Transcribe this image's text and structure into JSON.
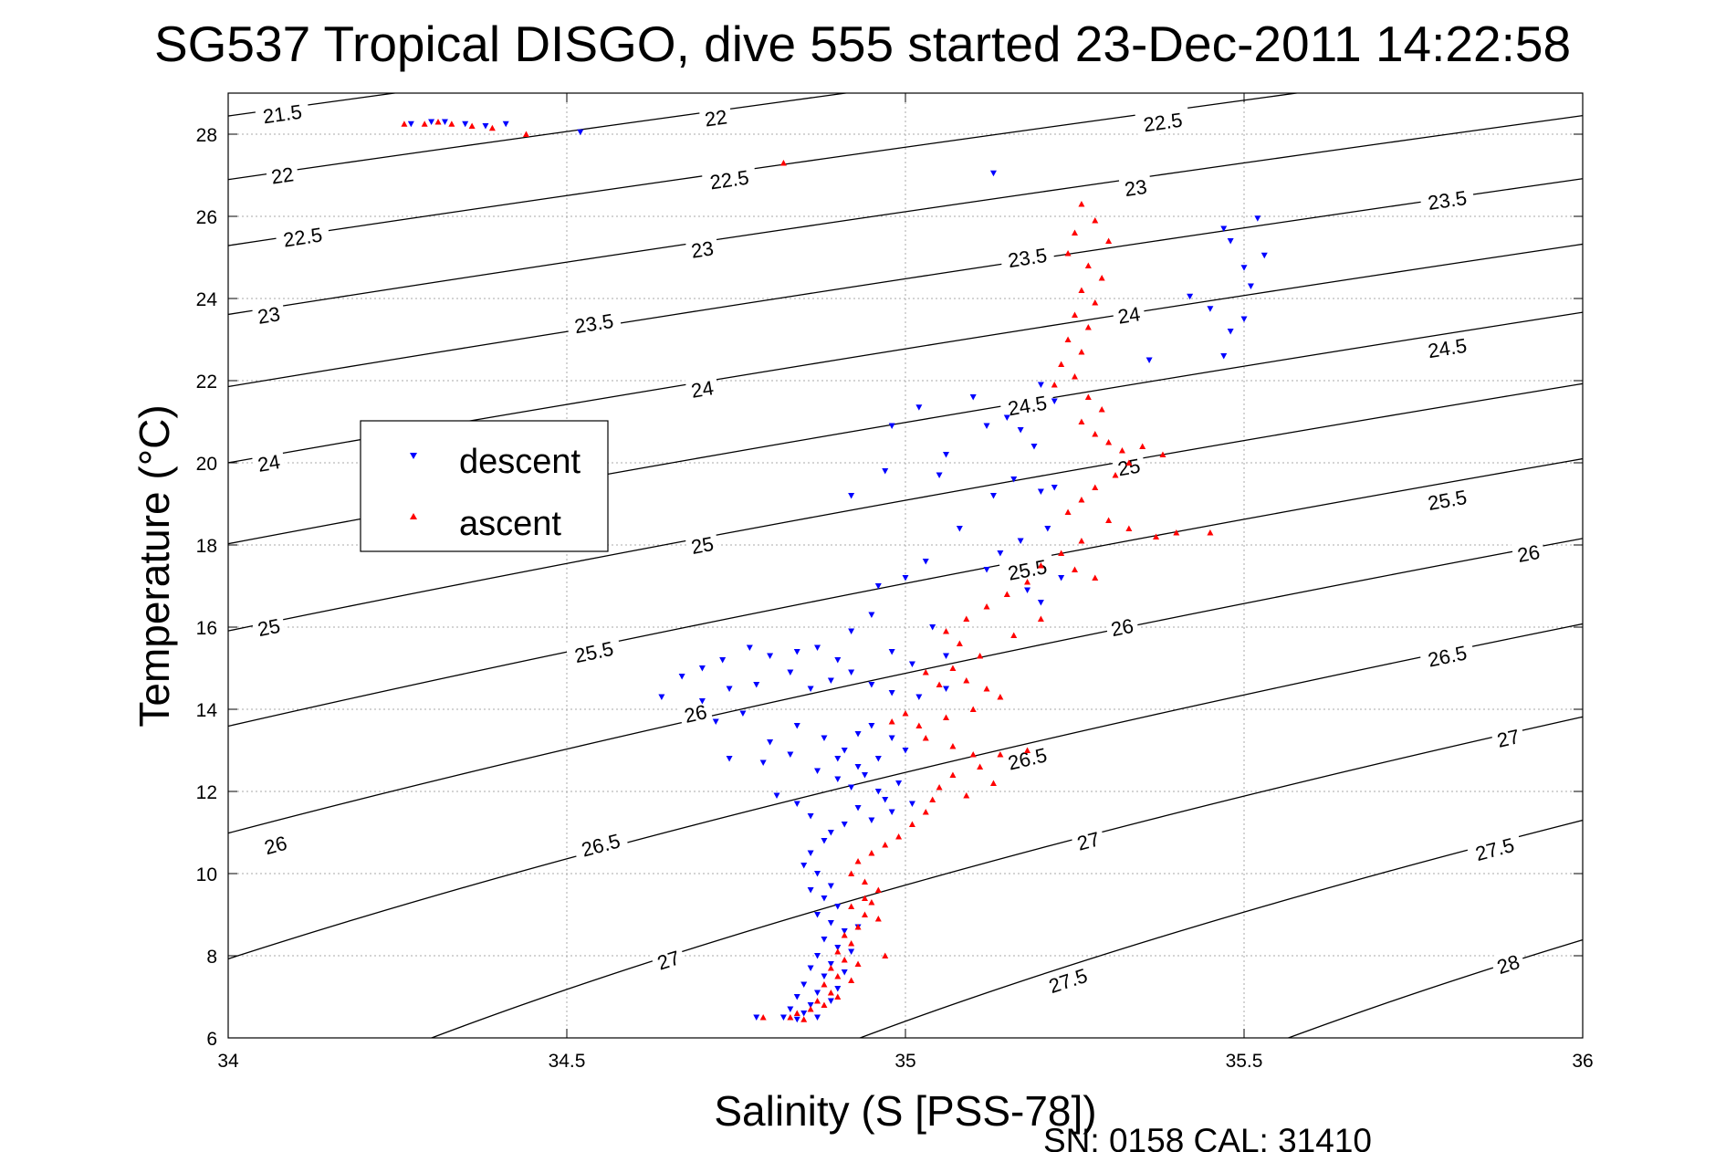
{
  "chart_data": {
    "type": "scatter",
    "title": "SG537 Tropical DISGO, dive 555 started 23-Dec-2011 14:22:58",
    "xlabel": "Salinity (S [PSS-78])",
    "ylabel": "Temperature (°C)",
    "xlim": [
      34,
      36
    ],
    "ylim": [
      6,
      29
    ],
    "x_ticks": [
      "34",
      "34.5",
      "35",
      "35.5",
      "36"
    ],
    "y_ticks": [
      "6",
      "8",
      "10",
      "12",
      "14",
      "16",
      "18",
      "20",
      "22",
      "24",
      "26",
      "28"
    ],
    "x_tick_values": [
      34,
      34.5,
      35,
      35.5,
      36
    ],
    "y_tick_values": [
      6,
      8,
      10,
      12,
      14,
      16,
      18,
      20,
      22,
      24,
      26,
      28
    ],
    "grid": true,
    "legend_position": "upper-left",
    "footer": "SN: 0158  CAL: 31410",
    "colors": {
      "descent": "#0000ff",
      "ascent": "#ff0000",
      "contour": "#000000",
      "grid": "#a8a8a8"
    },
    "isopycnals": [
      {
        "label": "21.5",
        "sigma": 21.5,
        "label_at": [
          [
            34.08,
            28.5
          ]
        ]
      },
      {
        "label": "22",
        "sigma": 22,
        "label_at": [
          [
            34.08,
            27.0
          ],
          [
            34.72,
            28.4
          ]
        ]
      },
      {
        "label": "22.5",
        "sigma": 22.5,
        "label_at": [
          [
            34.11,
            25.5
          ],
          [
            34.74,
            26.9
          ],
          [
            35.38,
            28.3
          ]
        ]
      },
      {
        "label": "23",
        "sigma": 23,
        "label_at": [
          [
            34.06,
            23.6
          ],
          [
            34.7,
            25.2
          ],
          [
            35.34,
            26.7
          ]
        ]
      },
      {
        "label": "23.5",
        "sigma": 23.5,
        "label_at": [
          [
            34.54,
            23.4
          ],
          [
            35.18,
            25.0
          ],
          [
            35.8,
            26.4
          ]
        ]
      },
      {
        "label": "24",
        "sigma": 24,
        "label_at": [
          [
            34.06,
            20.0
          ],
          [
            34.7,
            21.8
          ],
          [
            35.33,
            23.6
          ]
        ]
      },
      {
        "label": "24.5",
        "sigma": 24.5,
        "label_at": [
          [
            35.18,
            21.4
          ],
          [
            35.8,
            22.8
          ]
        ]
      },
      {
        "label": "25",
        "sigma": 25,
        "label_at": [
          [
            34.06,
            16.0
          ],
          [
            34.7,
            18.0
          ],
          [
            35.33,
            19.9
          ]
        ]
      },
      {
        "label": "25.5",
        "sigma": 25.5,
        "label_at": [
          [
            34.54,
            15.4
          ],
          [
            35.18,
            17.4
          ],
          [
            35.8,
            19.1
          ]
        ]
      },
      {
        "label": "26",
        "sigma": 26,
        "label_at": [
          [
            34.07,
            10.7
          ],
          [
            34.69,
            13.9
          ],
          [
            35.32,
            16.0
          ],
          [
            35.92,
            17.8
          ]
        ]
      },
      {
        "label": "26.5",
        "sigma": 26.5,
        "label_at": [
          [
            34.55,
            10.7
          ],
          [
            35.18,
            12.8
          ],
          [
            35.8,
            15.3
          ]
        ]
      },
      {
        "label": "27",
        "sigma": 27,
        "label_at": [
          [
            34.65,
            7.9
          ],
          [
            35.27,
            10.8
          ],
          [
            35.89,
            13.3
          ]
        ]
      },
      {
        "label": "27.5",
        "sigma": 27.5,
        "label_at": [
          [
            35.24,
            7.4
          ],
          [
            35.87,
            10.6
          ]
        ]
      },
      {
        "label": "28",
        "sigma": 28,
        "label_at": [
          [
            35.89,
            7.8
          ]
        ]
      }
    ],
    "series": [
      {
        "name": "descent",
        "marker": "triangle-down",
        "color": "#0000ff",
        "points": [
          [
            34.27,
            28.25
          ],
          [
            34.3,
            28.3
          ],
          [
            34.32,
            28.3
          ],
          [
            34.35,
            28.25
          ],
          [
            34.38,
            28.2
          ],
          [
            34.41,
            28.25
          ],
          [
            34.52,
            28.05
          ],
          [
            35.13,
            27.05
          ],
          [
            35.47,
            25.7
          ],
          [
            35.52,
            25.95
          ],
          [
            35.48,
            25.4
          ],
          [
            35.53,
            25.05
          ],
          [
            35.5,
            24.75
          ],
          [
            35.51,
            24.3
          ],
          [
            35.42,
            24.05
          ],
          [
            35.45,
            23.75
          ],
          [
            35.48,
            23.2
          ],
          [
            35.5,
            23.5
          ],
          [
            35.47,
            22.6
          ],
          [
            35.36,
            22.5
          ],
          [
            35.02,
            21.35
          ],
          [
            34.98,
            20.9
          ],
          [
            35.06,
            20.2
          ],
          [
            35.1,
            21.6
          ],
          [
            35.12,
            20.9
          ],
          [
            35.15,
            21.1
          ],
          [
            35.17,
            20.8
          ],
          [
            35.2,
            21.9
          ],
          [
            35.22,
            21.5
          ],
          [
            35.19,
            20.4
          ],
          [
            35.22,
            19.4
          ],
          [
            35.16,
            19.6
          ],
          [
            35.13,
            19.2
          ],
          [
            35.05,
            19.7
          ],
          [
            34.92,
            19.2
          ],
          [
            34.97,
            19.8
          ],
          [
            35.2,
            19.3
          ],
          [
            35.21,
            18.4
          ],
          [
            35.17,
            18.1
          ],
          [
            35.14,
            17.8
          ],
          [
            35.08,
            18.4
          ],
          [
            35.03,
            17.6
          ],
          [
            35.0,
            17.2
          ],
          [
            34.96,
            17.0
          ],
          [
            35.12,
            17.4
          ],
          [
            35.18,
            16.9
          ],
          [
            35.23,
            17.2
          ],
          [
            35.2,
            16.6
          ],
          [
            34.95,
            16.3
          ],
          [
            34.92,
            15.9
          ],
          [
            35.04,
            16.0
          ],
          [
            35.06,
            15.3
          ],
          [
            35.01,
            15.1
          ],
          [
            34.98,
            15.4
          ],
          [
            34.9,
            15.2
          ],
          [
            34.87,
            15.5
          ],
          [
            34.84,
            15.4
          ],
          [
            34.8,
            15.3
          ],
          [
            34.77,
            15.5
          ],
          [
            34.73,
            15.2
          ],
          [
            34.7,
            15.0
          ],
          [
            34.67,
            14.8
          ],
          [
            34.7,
            14.2
          ],
          [
            34.74,
            14.5
          ],
          [
            34.78,
            14.6
          ],
          [
            34.83,
            14.9
          ],
          [
            34.86,
            14.5
          ],
          [
            34.89,
            14.7
          ],
          [
            34.92,
            14.9
          ],
          [
            34.95,
            14.6
          ],
          [
            34.98,
            14.4
          ],
          [
            35.02,
            14.3
          ],
          [
            35.06,
            14.5
          ],
          [
            34.64,
            14.3
          ],
          [
            34.76,
            13.9
          ],
          [
            34.72,
            13.7
          ],
          [
            34.8,
            13.2
          ],
          [
            34.84,
            13.6
          ],
          [
            34.88,
            13.3
          ],
          [
            34.91,
            13.0
          ],
          [
            34.93,
            13.4
          ],
          [
            34.95,
            13.6
          ],
          [
            34.98,
            13.3
          ],
          [
            35.0,
            13.0
          ],
          [
            34.96,
            12.8
          ],
          [
            34.93,
            12.6
          ],
          [
            34.9,
            12.8
          ],
          [
            34.87,
            12.5
          ],
          [
            34.83,
            12.9
          ],
          [
            34.79,
            12.7
          ],
          [
            34.74,
            12.8
          ],
          [
            34.9,
            12.3
          ],
          [
            34.92,
            12.1
          ],
          [
            34.94,
            12.4
          ],
          [
            34.96,
            12.0
          ],
          [
            34.97,
            11.8
          ],
          [
            34.99,
            12.2
          ],
          [
            35.01,
            11.7
          ],
          [
            34.98,
            11.5
          ],
          [
            34.95,
            11.3
          ],
          [
            34.93,
            11.6
          ],
          [
            34.91,
            11.2
          ],
          [
            34.89,
            11.0
          ],
          [
            34.86,
            11.4
          ],
          [
            34.84,
            11.7
          ],
          [
            34.81,
            11.9
          ],
          [
            34.88,
            10.8
          ],
          [
            34.86,
            10.5
          ],
          [
            34.85,
            10.2
          ],
          [
            34.87,
            10.0
          ],
          [
            34.89,
            9.7
          ],
          [
            34.86,
            9.6
          ],
          [
            34.88,
            9.4
          ],
          [
            34.9,
            9.2
          ],
          [
            34.87,
            9.0
          ],
          [
            34.89,
            8.8
          ],
          [
            34.91,
            8.6
          ],
          [
            34.88,
            8.4
          ],
          [
            34.9,
            8.2
          ],
          [
            34.87,
            8.0
          ],
          [
            34.89,
            7.8
          ],
          [
            34.86,
            7.7
          ],
          [
            34.88,
            7.5
          ],
          [
            34.85,
            7.3
          ],
          [
            34.87,
            7.1
          ],
          [
            34.84,
            7.0
          ],
          [
            34.86,
            6.8
          ],
          [
            34.83,
            6.7
          ],
          [
            34.85,
            6.6
          ],
          [
            34.82,
            6.5
          ],
          [
            34.84,
            6.45
          ],
          [
            34.78,
            6.5
          ],
          [
            34.93,
            8.7
          ],
          [
            34.92,
            8.1
          ],
          [
            34.91,
            7.6
          ],
          [
            34.9,
            7.2
          ],
          [
            34.89,
            6.9
          ],
          [
            34.87,
            6.5
          ]
        ]
      },
      {
        "name": "ascent",
        "marker": "triangle-up",
        "color": "#ff0000",
        "points": [
          [
            34.26,
            28.25
          ],
          [
            34.29,
            28.25
          ],
          [
            34.31,
            28.3
          ],
          [
            34.33,
            28.25
          ],
          [
            34.36,
            28.2
          ],
          [
            34.39,
            28.15
          ],
          [
            34.44,
            28.0
          ],
          [
            34.82,
            27.3
          ],
          [
            35.26,
            26.3
          ],
          [
            35.28,
            25.9
          ],
          [
            35.25,
            25.6
          ],
          [
            35.3,
            25.4
          ],
          [
            35.24,
            25.1
          ],
          [
            35.27,
            24.8
          ],
          [
            35.29,
            24.5
          ],
          [
            35.26,
            24.2
          ],
          [
            35.28,
            23.9
          ],
          [
            35.25,
            23.6
          ],
          [
            35.27,
            23.3
          ],
          [
            35.24,
            23.0
          ],
          [
            35.26,
            22.7
          ],
          [
            35.23,
            22.4
          ],
          [
            35.25,
            22.1
          ],
          [
            35.22,
            21.9
          ],
          [
            35.27,
            21.6
          ],
          [
            35.29,
            21.3
          ],
          [
            35.26,
            21.0
          ],
          [
            35.28,
            20.7
          ],
          [
            35.3,
            20.5
          ],
          [
            35.32,
            20.3
          ],
          [
            35.35,
            20.4
          ],
          [
            35.38,
            20.2
          ],
          [
            35.33,
            20.0
          ],
          [
            35.31,
            19.7
          ],
          [
            35.28,
            19.4
          ],
          [
            35.26,
            19.1
          ],
          [
            35.24,
            18.8
          ],
          [
            35.3,
            18.6
          ],
          [
            35.33,
            18.4
          ],
          [
            35.37,
            18.2
          ],
          [
            35.4,
            18.3
          ],
          [
            35.45,
            18.3
          ],
          [
            35.26,
            18.1
          ],
          [
            35.23,
            17.8
          ],
          [
            35.2,
            17.5
          ],
          [
            35.25,
            17.4
          ],
          [
            35.28,
            17.2
          ],
          [
            35.18,
            17.1
          ],
          [
            35.15,
            16.8
          ],
          [
            35.12,
            16.5
          ],
          [
            35.09,
            16.2
          ],
          [
            35.06,
            15.9
          ],
          [
            35.08,
            15.6
          ],
          [
            35.11,
            15.3
          ],
          [
            35.07,
            15.0
          ],
          [
            35.09,
            14.7
          ],
          [
            35.12,
            14.5
          ],
          [
            35.14,
            14.3
          ],
          [
            35.1,
            14.0
          ],
          [
            35.06,
            13.8
          ],
          [
            35.02,
            13.6
          ],
          [
            35.0,
            13.9
          ],
          [
            34.98,
            13.7
          ],
          [
            35.03,
            13.3
          ],
          [
            35.07,
            13.1
          ],
          [
            35.1,
            12.9
          ],
          [
            35.11,
            12.6
          ],
          [
            35.07,
            12.4
          ],
          [
            35.05,
            12.1
          ],
          [
            35.04,
            11.8
          ],
          [
            35.03,
            11.5
          ],
          [
            35.01,
            11.2
          ],
          [
            34.99,
            10.9
          ],
          [
            34.97,
            10.7
          ],
          [
            34.95,
            10.5
          ],
          [
            34.93,
            10.3
          ],
          [
            34.92,
            10.0
          ],
          [
            34.94,
            9.8
          ],
          [
            34.96,
            9.6
          ],
          [
            34.94,
            9.4
          ],
          [
            34.92,
            9.2
          ],
          [
            34.94,
            9.0
          ],
          [
            34.96,
            8.9
          ],
          [
            34.93,
            8.7
          ],
          [
            34.91,
            8.5
          ],
          [
            34.92,
            8.3
          ],
          [
            34.9,
            8.1
          ],
          [
            34.91,
            7.9
          ],
          [
            34.89,
            7.7
          ],
          [
            34.9,
            7.5
          ],
          [
            34.88,
            7.3
          ],
          [
            34.89,
            7.1
          ],
          [
            34.87,
            6.9
          ],
          [
            34.86,
            6.7
          ],
          [
            34.84,
            6.6
          ],
          [
            34.83,
            6.5
          ],
          [
            34.85,
            6.45
          ],
          [
            34.79,
            6.5
          ],
          [
            34.95,
            9.3
          ],
          [
            34.97,
            8.0
          ],
          [
            34.93,
            7.8
          ],
          [
            34.92,
            7.4
          ],
          [
            34.9,
            7.0
          ],
          [
            34.88,
            6.8
          ],
          [
            35.2,
            16.2
          ],
          [
            35.16,
            15.8
          ],
          [
            35.03,
            14.9
          ],
          [
            35.05,
            14.6
          ],
          [
            35.13,
            12.2
          ],
          [
            35.09,
            11.9
          ],
          [
            35.14,
            12.9
          ],
          [
            35.18,
            13.0
          ]
        ]
      }
    ]
  }
}
